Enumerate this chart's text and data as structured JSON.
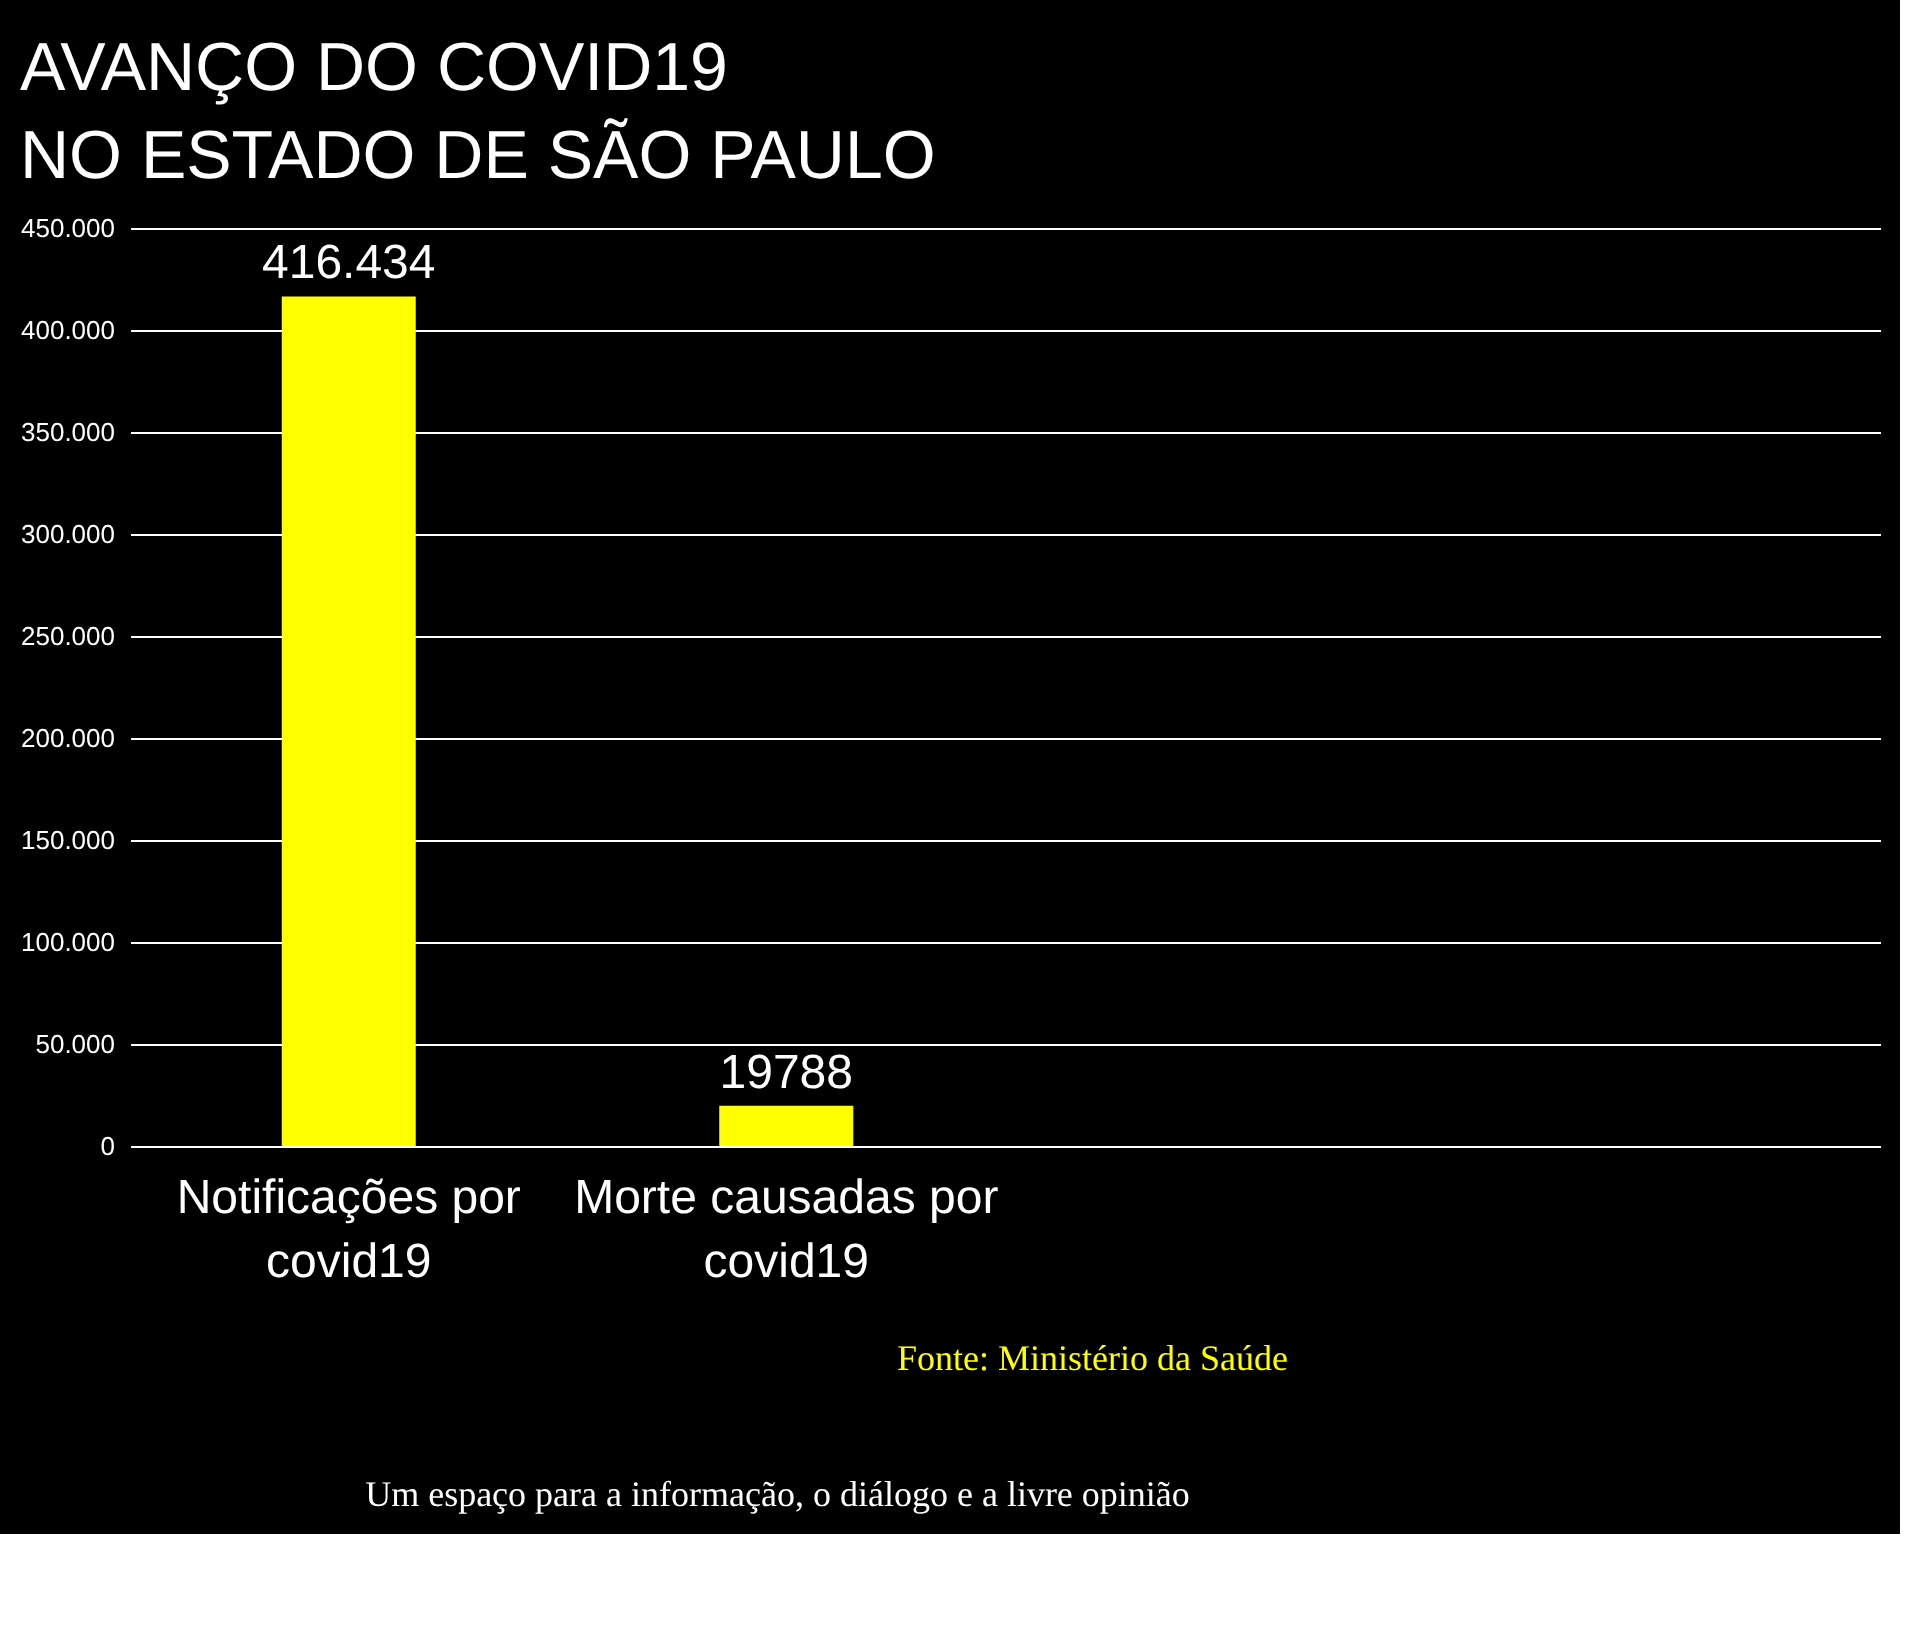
{
  "chart_data": {
    "type": "bar",
    "title": [
      "AVANÇO DO COVID19",
      "NO ESTADO DE SÃO PAULO"
    ],
    "categories": [
      "Notificações por covid19",
      "Morte causadas por covid19",
      null,
      null
    ],
    "values": [
      416434,
      19788,
      null,
      null
    ],
    "value_labels": [
      "416.434",
      "19788",
      null,
      null
    ],
    "color": "#ffff00",
    "ylim": [
      0,
      450000
    ],
    "yticks": [
      {
        "value": 0,
        "label": "0"
      },
      {
        "value": 50000,
        "label": "50.000"
      },
      {
        "value": 100000,
        "label": "100.000"
      },
      {
        "value": 150000,
        "label": "150.000"
      },
      {
        "value": 200000,
        "label": "200.000"
      },
      {
        "value": 250000,
        "label": "250.000"
      },
      {
        "value": 300000,
        "label": "300.000"
      },
      {
        "value": 350000,
        "label": "350.000"
      },
      {
        "value": 400000,
        "label": "400.000"
      },
      {
        "value": 450000,
        "label": "450.000"
      }
    ],
    "grid": "y",
    "annotations": [
      "Fonte: Ministério da Saúde",
      "Um espaço para a informação, o diálogo e a livre opinião"
    ]
  }
}
